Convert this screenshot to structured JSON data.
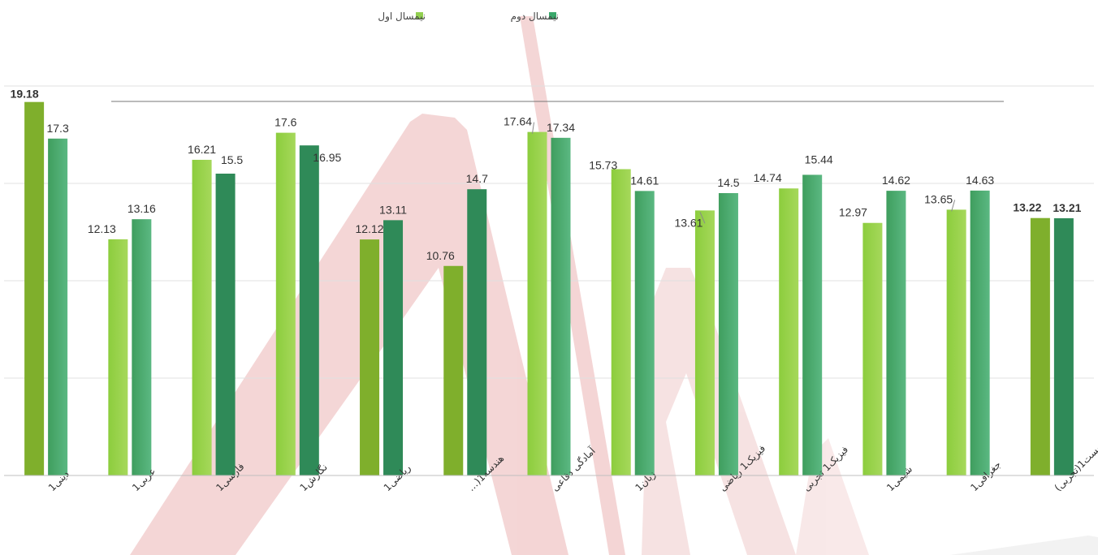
{
  "chart_data": {
    "type": "bar",
    "title": "",
    "xlabel": "",
    "ylabel": "",
    "ylim": [
      0,
      20
    ],
    "grid": true,
    "legend_position": "top-center",
    "categories": [
      "دینی1",
      "عربی1",
      "فارسی1",
      "نگارش1",
      "ریاضی1",
      "هندسه1(…",
      "آمادگی دفاعی",
      "زبان1",
      "فیزیک1 ریاضی",
      "فیزیک1 تجربی",
      "شیمی1",
      "جغرافی1",
      "زیست1(تجربی)"
    ],
    "series": [
      {
        "name": "نیمسال اول",
        "color": "#92d050",
        "values": [
          19.18,
          12.13,
          16.21,
          17.6,
          12.12,
          10.76,
          17.64,
          15.73,
          13.61,
          14.74,
          12.97,
          13.65,
          13.22
        ],
        "labels": [
          "19.18",
          "12.13",
          "16.21",
          "17.6",
          "12.12",
          "10.76",
          "17.64",
          "15.73",
          "13.61",
          "14.74",
          "12.97",
          "13.65",
          "13.22"
        ]
      },
      {
        "name": "نیمسال  دوم",
        "color": "#3aa86b",
        "values": [
          17.3,
          13.16,
          15.5,
          16.95,
          13.11,
          14.7,
          17.34,
          14.61,
          14.5,
          15.44,
          14.62,
          14.63,
          13.21
        ],
        "labels": [
          "17.3",
          "13.16",
          "15.5",
          "16.95",
          "13.11",
          "14.7",
          "17.34",
          "14.61",
          "14.5",
          "15.44",
          "14.62",
          "14.63",
          "13.21"
        ]
      }
    ]
  }
}
